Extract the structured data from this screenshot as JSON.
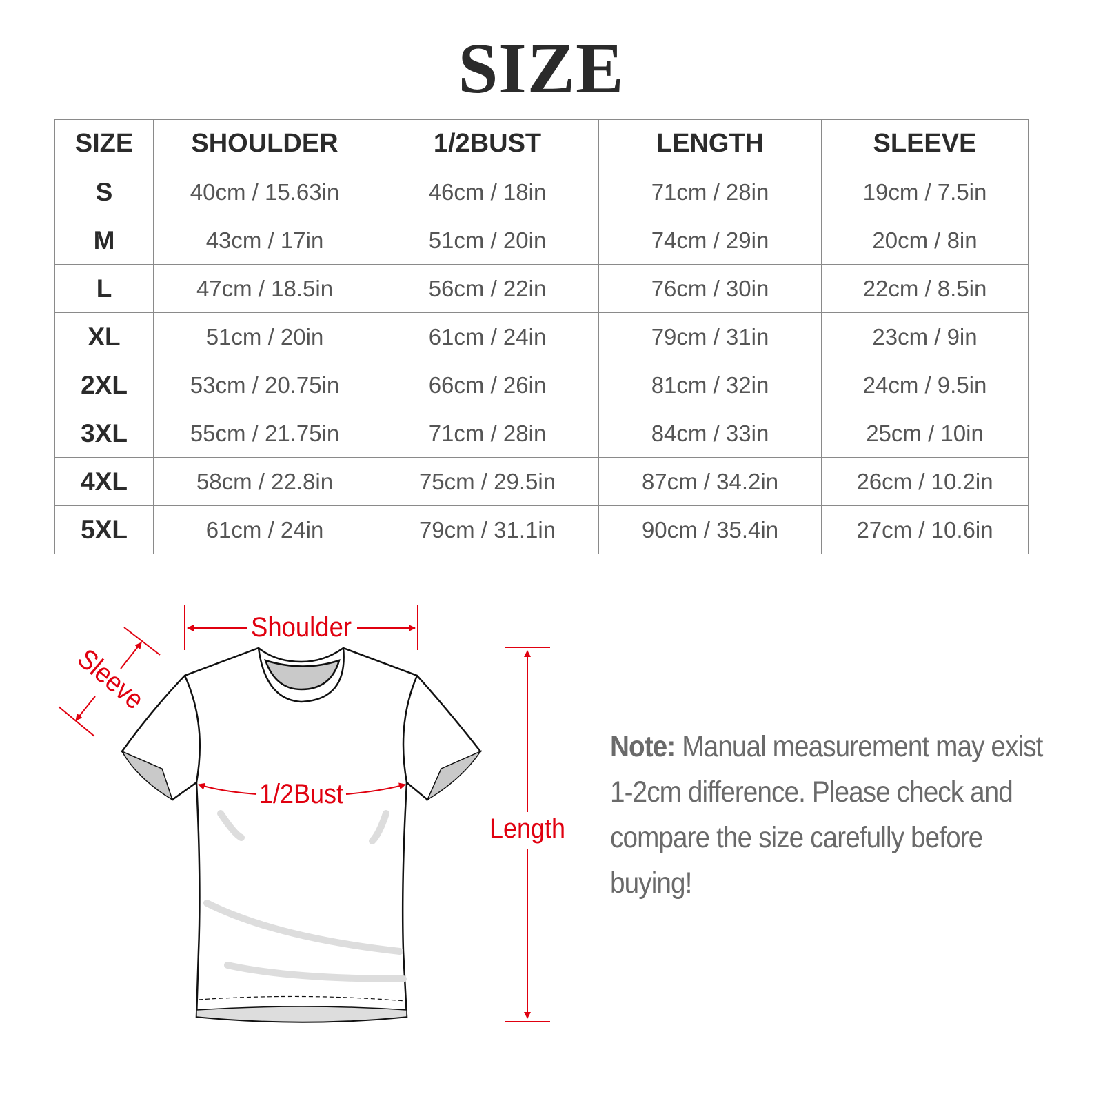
{
  "title": "SIZE",
  "table": {
    "headers": [
      "SIZE",
      "SHOULDER",
      "1/2BUST",
      "LENGTH",
      "SLEEVE"
    ],
    "rows": [
      [
        "S",
        "40cm / 15.63in",
        "46cm / 18in",
        "71cm / 28in",
        "19cm / 7.5in"
      ],
      [
        "M",
        "43cm / 17in",
        "51cm / 20in",
        "74cm / 29in",
        "20cm / 8in"
      ],
      [
        "L",
        "47cm / 18.5in",
        "56cm / 22in",
        "76cm / 30in",
        "22cm / 8.5in"
      ],
      [
        "XL",
        "51cm / 20in",
        "61cm / 24in",
        "79cm / 31in",
        "23cm / 9in"
      ],
      [
        "2XL",
        "53cm / 20.75in",
        "66cm / 26in",
        "81cm / 32in",
        "24cm / 9.5in"
      ],
      [
        "3XL",
        "55cm / 21.75in",
        "71cm / 28in",
        "84cm / 33in",
        "25cm / 10in"
      ],
      [
        "4XL",
        "58cm / 22.8in",
        "75cm / 29.5in",
        "87cm / 34.2in",
        "26cm / 10.2in"
      ],
      [
        "5XL",
        "61cm / 24in",
        "79cm / 31.1in",
        "90cm / 35.4in",
        "27cm / 10.6in"
      ]
    ]
  },
  "diagram": {
    "labels": {
      "shoulder": "Shoulder",
      "sleeve": "Sleeve",
      "bust": "1/2Bust",
      "length": "Length"
    },
    "accent_color": "#e0000f"
  },
  "note": {
    "label": "Note:",
    "text": " Manual measurement may exist 1-2cm difference. Please check and compare the size carefully before buying!"
  }
}
